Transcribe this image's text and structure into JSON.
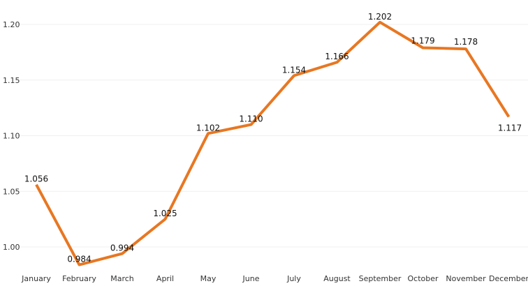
{
  "chart_data": {
    "type": "line",
    "title": "",
    "xlabel": "",
    "ylabel": "",
    "categories": [
      "January",
      "February",
      "March",
      "April",
      "May",
      "June",
      "July",
      "August",
      "September",
      "October",
      "November",
      "December"
    ],
    "series": [
      {
        "values": [
          1.056,
          0.984,
          0.994,
          1.025,
          1.102,
          1.11,
          1.154,
          1.166,
          1.202,
          1.179,
          1.178,
          1.117
        ]
      }
    ],
    "data_labels": [
      "1.056",
      "0.984",
      "0.994",
      "1.025",
      "1.102",
      "1.110",
      "1.154",
      "1.166",
      "1.202",
      "1.179",
      "1.178",
      "1.117"
    ],
    "y_ticks": [
      {
        "value": 1.0,
        "label": "1.00"
      },
      {
        "value": 1.05,
        "label": "1.05"
      },
      {
        "value": 1.1,
        "label": "1.10"
      },
      {
        "value": 1.15,
        "label": "1.15"
      },
      {
        "value": 1.2,
        "label": "1.20"
      }
    ],
    "ylim": [
      0.97,
      1.21
    ],
    "grid": true,
    "legend": "none",
    "line_color": "#E87722"
  }
}
